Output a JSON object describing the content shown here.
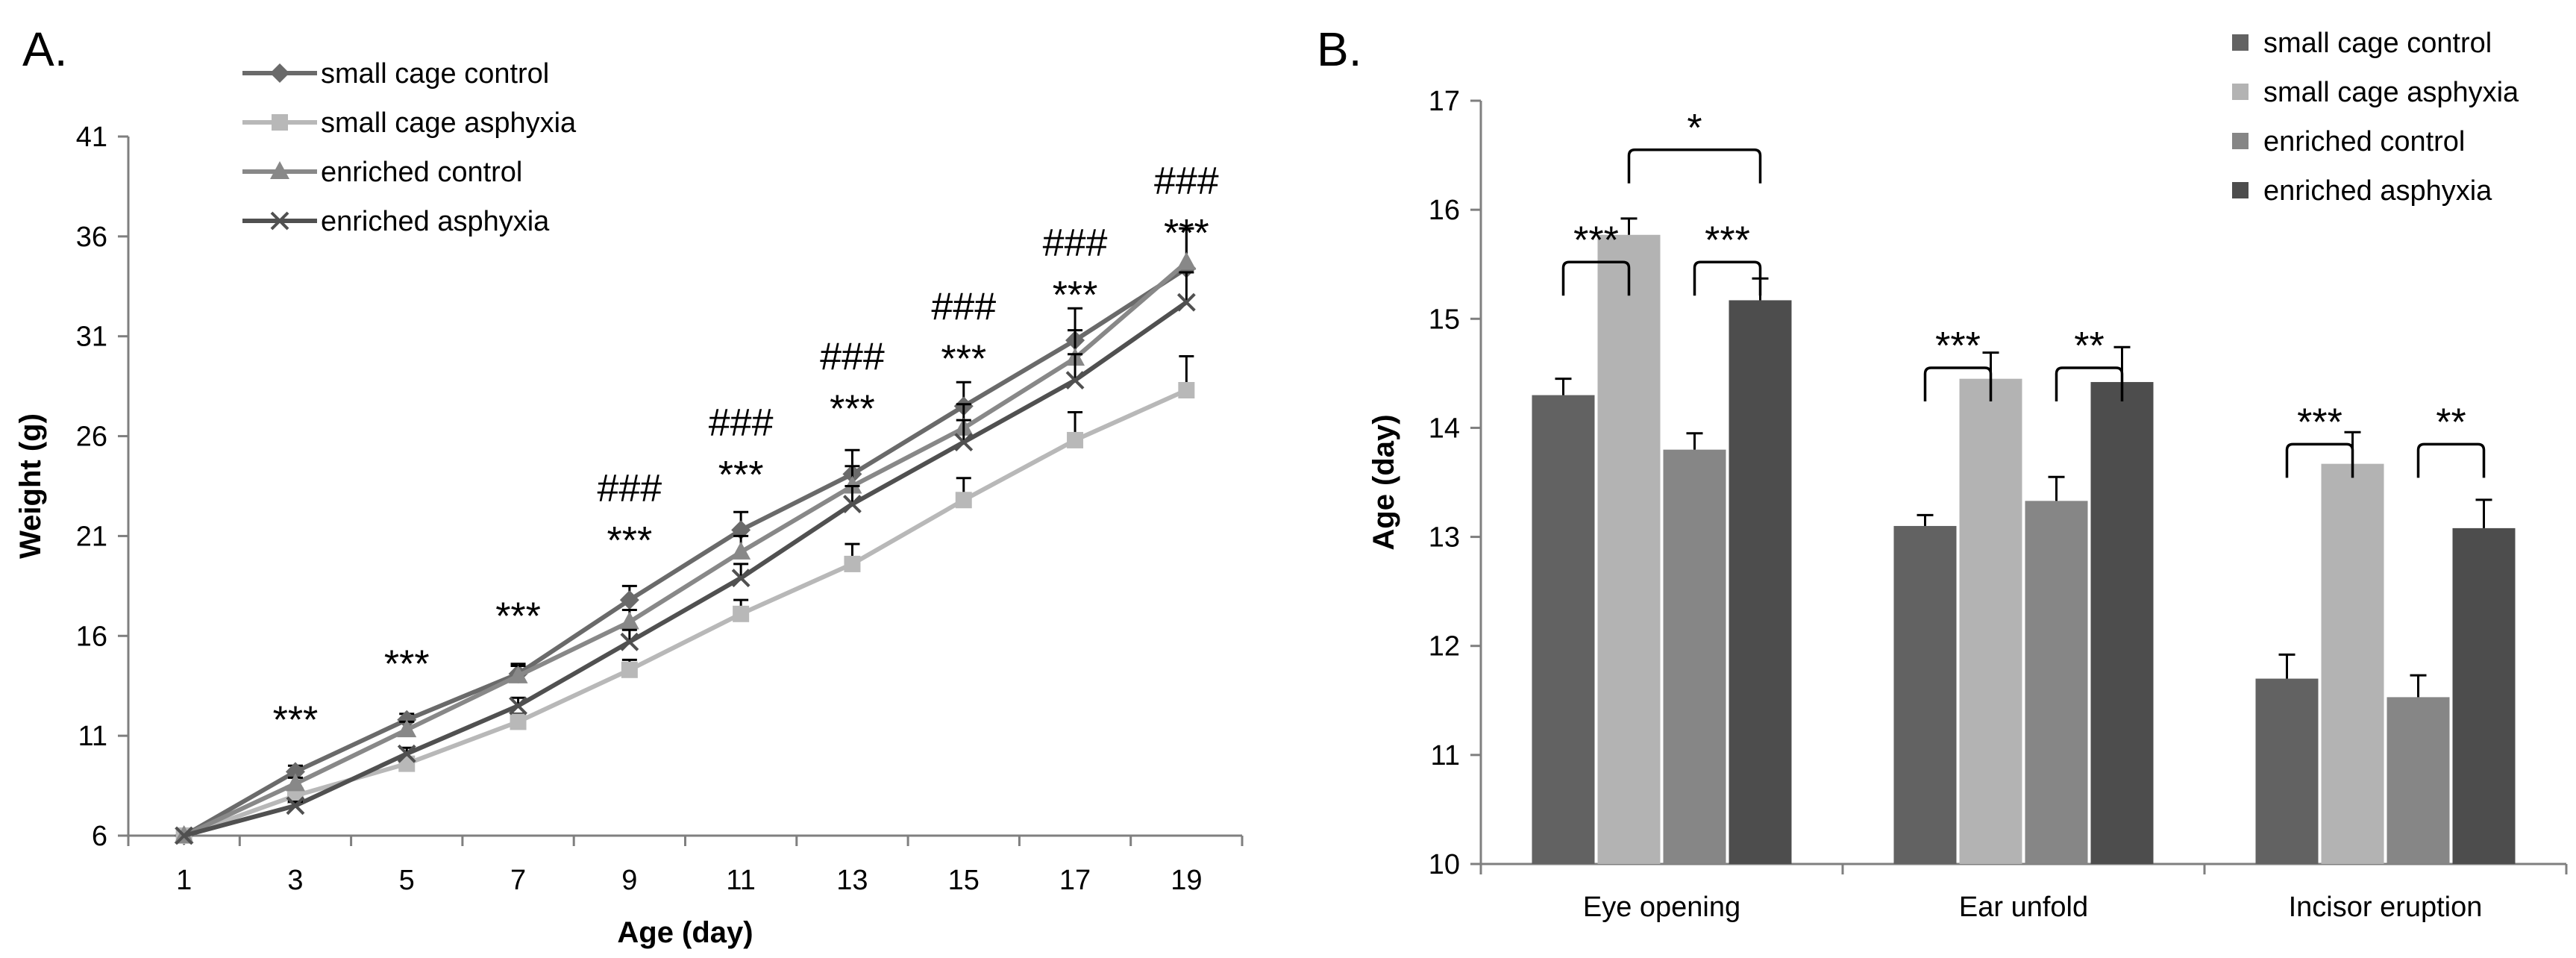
{
  "panels": {
    "a_label": "A.",
    "b_label": "B."
  },
  "chart_data": [
    {
      "type": "line",
      "title": "",
      "xlabel": "Age (day)",
      "ylabel": "Weight (g)",
      "x": [
        1,
        3,
        5,
        7,
        9,
        11,
        13,
        15,
        17,
        19
      ],
      "ylim": [
        6,
        41
      ],
      "yticks": [
        6,
        11,
        16,
        21,
        26,
        31,
        36,
        41
      ],
      "legend_position": "top-left",
      "series": [
        {
          "name": "small cage control",
          "marker": "diamond",
          "color": "#6a6a6a",
          "values": [
            6.0,
            9.2,
            11.8,
            14.1,
            17.8,
            21.3,
            24.1,
            27.5,
            30.8,
            34.4
          ],
          "errors": [
            0.0,
            0.3,
            0.3,
            0.5,
            0.7,
            0.9,
            1.2,
            1.2,
            1.6,
            2.0
          ]
        },
        {
          "name": "small cage asphyxia",
          "marker": "square",
          "color": "#b8b8b8",
          "values": [
            6.0,
            8.0,
            9.6,
            11.7,
            14.3,
            17.1,
            19.6,
            22.8,
            25.8,
            28.3
          ],
          "errors": [
            0.0,
            0.3,
            0.3,
            0.4,
            0.5,
            0.7,
            1.0,
            1.1,
            1.4,
            1.7
          ]
        },
        {
          "name": "enriched control",
          "marker": "triangle",
          "color": "#888888",
          "values": [
            6.0,
            8.6,
            11.3,
            14.0,
            16.7,
            20.2,
            23.5,
            26.4,
            29.9,
            34.7
          ],
          "errors": [
            0.0,
            0.3,
            0.4,
            0.5,
            0.6,
            0.8,
            1.0,
            1.2,
            1.4,
            1.7
          ]
        },
        {
          "name": "enriched asphyxia",
          "marker": "x",
          "color": "#505050",
          "values": [
            6.0,
            7.5,
            10.1,
            12.5,
            15.7,
            18.9,
            22.6,
            25.7,
            28.8,
            32.7
          ],
          "errors": [
            0.0,
            0.2,
            0.3,
            0.4,
            0.6,
            0.7,
            0.9,
            1.1,
            1.3,
            1.5
          ]
        }
      ],
      "annotations": [
        {
          "x": 3,
          "lines": [
            "***"
          ],
          "y_top": 12.4
        },
        {
          "x": 5,
          "lines": [
            "***"
          ],
          "y_top": 15.2
        },
        {
          "x": 7,
          "lines": [
            "***"
          ],
          "y_top": 17.6
        },
        {
          "x": 9,
          "lines": [
            "###",
            "***"
          ],
          "y_top": 24.0
        },
        {
          "x": 11,
          "lines": [
            "###",
            "***"
          ],
          "y_top": 27.3
        },
        {
          "x": 13,
          "lines": [
            "###",
            "***"
          ],
          "y_top": 30.6
        },
        {
          "x": 15,
          "lines": [
            "###",
            "***"
          ],
          "y_top": 33.1
        },
        {
          "x": 17,
          "lines": [
            "###",
            "***"
          ],
          "y_top": 36.3
        },
        {
          "x": 19,
          "lines": [
            "###",
            "***"
          ],
          "y_top": 39.4
        }
      ]
    },
    {
      "type": "bar",
      "title": "",
      "xlabel": "",
      "ylabel": "Age (day)",
      "categories": [
        "Eye opening",
        "Ear unfold",
        "Incisor eruption"
      ],
      "ylim": [
        10,
        17
      ],
      "yticks": [
        10,
        11,
        12,
        13,
        14,
        15,
        16,
        17
      ],
      "legend_position": "top-right",
      "series": [
        {
          "name": "small cage control",
          "color": "#626262",
          "values": [
            14.3,
            13.1,
            11.7
          ],
          "errors": [
            0.15,
            0.1,
            0.22
          ]
        },
        {
          "name": "small cage asphyxia",
          "color": "#b3b3b3",
          "values": [
            15.77,
            14.45,
            13.67
          ],
          "errors": [
            0.15,
            0.24,
            0.29
          ]
        },
        {
          "name": "enriched control",
          "color": "#868686",
          "values": [
            13.8,
            13.33,
            11.53
          ],
          "errors": [
            0.15,
            0.22,
            0.2
          ]
        },
        {
          "name": "enriched asphyxia",
          "color": "#4d4d4d",
          "values": [
            15.17,
            14.42,
            13.08
          ],
          "errors": [
            0.2,
            0.32,
            0.26
          ]
        }
      ],
      "significance": [
        {
          "category": 0,
          "from": 0,
          "to": 1,
          "label": "***",
          "y": 15.52
        },
        {
          "category": 0,
          "from": 2,
          "to": 3,
          "label": "***",
          "y": 15.52
        },
        {
          "category": 0,
          "from": 1,
          "to": 3,
          "label": "*",
          "y": 16.55
        },
        {
          "category": 1,
          "from": 0,
          "to": 1,
          "label": "***",
          "y": 14.55
        },
        {
          "category": 1,
          "from": 2,
          "to": 3,
          "label": "**",
          "y": 14.55
        },
        {
          "category": 2,
          "from": 0,
          "to": 1,
          "label": "***",
          "y": 13.85
        },
        {
          "category": 2,
          "from": 2,
          "to": 3,
          "label": "**",
          "y": 13.85
        }
      ]
    }
  ]
}
